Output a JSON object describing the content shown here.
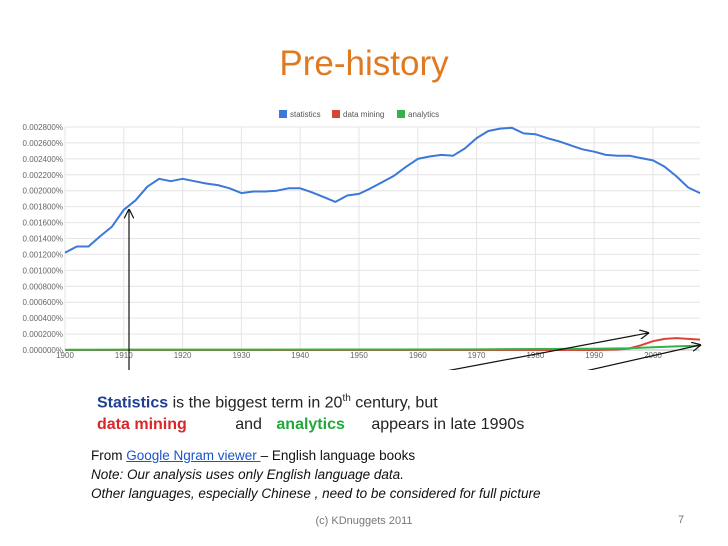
{
  "slide": {
    "title": "Pre-history",
    "footer": "(c) KDnuggets 2011",
    "page_number": "7"
  },
  "caption": {
    "line1_bold": "Statistics",
    "line1_rest": " is the biggest term in 20",
    "line1_sup": "th",
    "line1_end": " century, but",
    "dm": "data mining",
    "and": "and",
    "analytics": "analytics",
    "appears": "appears in late 1990s"
  },
  "source": {
    "from": "From ",
    "link": "Google Ngram viewer ",
    "rest": "– English language books",
    "note1": "Note: Our analysis uses only English language data.",
    "note2": "Other languages, especially Chinese , need to be considered for full picture"
  },
  "chart_data": {
    "type": "line",
    "xlim": [
      1900,
      2008
    ],
    "ylim": [
      0,
      0.0028
    ],
    "x_ticks": [
      1900,
      1910,
      1920,
      1930,
      1940,
      1950,
      1960,
      1970,
      1980,
      1990,
      2000
    ],
    "y_ticks": [
      "0.000000%",
      "0.000200%",
      "0.000400%",
      "0.000600%",
      "0.000800%",
      "0.001000%",
      "0.001200%",
      "0.001400%",
      "0.001600%",
      "0.001800%",
      "0.002000%",
      "0.002200%",
      "0.002400%",
      "0.002600%",
      "0.002800%"
    ],
    "grid": true,
    "legend_position": "top",
    "series": [
      {
        "name": "statistics",
        "color": "#3c78d8",
        "x": [
          1900,
          1902,
          1904,
          1906,
          1908,
          1910,
          1912,
          1914,
          1916,
          1918,
          1920,
          1922,
          1924,
          1926,
          1928,
          1930,
          1932,
          1934,
          1936,
          1938,
          1940,
          1942,
          1944,
          1946,
          1948,
          1950,
          1952,
          1954,
          1956,
          1958,
          1960,
          1962,
          1964,
          1966,
          1968,
          1970,
          1972,
          1974,
          1976,
          1978,
          1980,
          1982,
          1984,
          1986,
          1988,
          1990,
          1992,
          1994,
          1996,
          1998,
          2000,
          2002,
          2004,
          2006,
          2008
        ],
        "y": [
          0.00122,
          0.0013,
          0.0013,
          0.00143,
          0.00155,
          0.00176,
          0.00188,
          0.00205,
          0.00215,
          0.00212,
          0.00215,
          0.00212,
          0.00209,
          0.00207,
          0.00203,
          0.00197,
          0.00199,
          0.00199,
          0.002,
          0.00203,
          0.00203,
          0.00198,
          0.00192,
          0.00186,
          0.00194,
          0.00196,
          0.00203,
          0.00211,
          0.00219,
          0.0023,
          0.0024,
          0.00243,
          0.00245,
          0.00244,
          0.00253,
          0.00266,
          0.00275,
          0.00278,
          0.00279,
          0.00272,
          0.00271,
          0.00266,
          0.00262,
          0.00257,
          0.00252,
          0.00249,
          0.00245,
          0.00244,
          0.00244,
          0.00241,
          0.00238,
          0.0023,
          0.00218,
          0.00204,
          0.00197
        ]
      },
      {
        "name": "data mining",
        "color": "#d9433a",
        "x": [
          1900,
          1990,
          1994,
          1996,
          1998,
          2000,
          2002,
          2004,
          2006,
          2008
        ],
        "y": [
          0,
          0,
          5e-06,
          2e-05,
          6e-05,
          0.00011,
          0.00014,
          0.00015,
          0.00014,
          0.00013
        ]
      },
      {
        "name": "analytics",
        "color": "#2fb34a",
        "x": [
          1900,
          1950,
          1970,
          1980,
          1990,
          1996,
          2000,
          2004,
          2008
        ],
        "y": [
          4e-06,
          6e-06,
          8e-06,
          1.2e-05,
          1.5e-05,
          2.2e-05,
          3.5e-05,
          4.5e-05,
          5.5e-05
        ]
      }
    ]
  }
}
